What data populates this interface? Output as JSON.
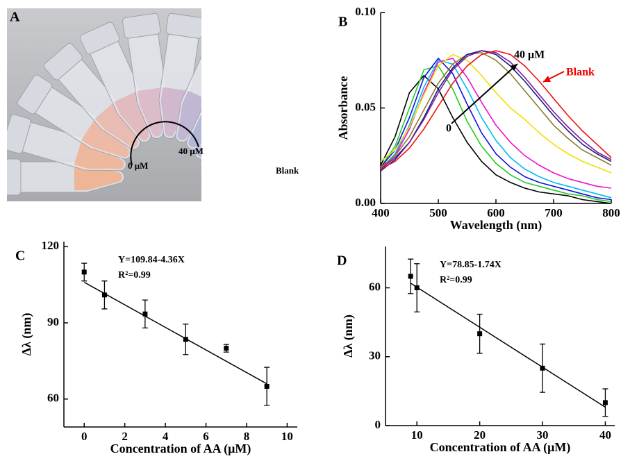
{
  "chart_data": [
    {
      "type": "image",
      "label": "A",
      "annotations": [
        "0 μM",
        "40 μM",
        "Blank"
      ]
    },
    {
      "type": "line",
      "label": "B",
      "xlabel": "Wavelength (nm)",
      "ylabel": "Absorbance",
      "annotations": [
        "40 μM",
        "Blank",
        "0"
      ],
      "x": [
        400,
        425,
        450,
        475,
        500,
        525,
        550,
        575,
        600,
        625,
        650,
        675,
        700,
        725,
        750,
        775,
        800
      ],
      "xlim": [
        400,
        800
      ],
      "xticks": [
        400,
        500,
        600,
        700,
        800
      ],
      "ylim": [
        0,
        0.1
      ],
      "yticks": [
        {
          "value": 0,
          "label": "0.00"
        },
        {
          "value": 0.05,
          "label": "0.05"
        },
        {
          "value": 0.1,
          "label": "0.10"
        }
      ],
      "series": [
        {
          "color": "#000000",
          "values": [
            0.02,
            0.035,
            0.058,
            0.067,
            0.06,
            0.045,
            0.032,
            0.022,
            0.015,
            0.011,
            0.008,
            0.006,
            0.005,
            0.004,
            0.002,
            0.001,
            0.0
          ]
        },
        {
          "color": "#22cc22",
          "values": [
            0.019,
            0.03,
            0.05,
            0.07,
            0.072,
            0.06,
            0.043,
            0.03,
            0.021,
            0.015,
            0.011,
            0.009,
            0.007,
            0.005,
            0.004,
            0.002,
            0.001
          ]
        },
        {
          "color": "#1010dd",
          "values": [
            0.019,
            0.028,
            0.045,
            0.066,
            0.076,
            0.068,
            0.052,
            0.037,
            0.026,
            0.019,
            0.014,
            0.011,
            0.009,
            0.007,
            0.005,
            0.003,
            0.002
          ]
        },
        {
          "color": "#00bbee",
          "values": [
            0.018,
            0.026,
            0.041,
            0.061,
            0.075,
            0.073,
            0.06,
            0.045,
            0.033,
            0.024,
            0.018,
            0.014,
            0.011,
            0.009,
            0.007,
            0.005,
            0.003
          ]
        },
        {
          "color": "#ee11cc",
          "values": [
            0.018,
            0.025,
            0.039,
            0.058,
            0.074,
            0.076,
            0.066,
            0.053,
            0.041,
            0.032,
            0.025,
            0.02,
            0.016,
            0.013,
            0.011,
            0.009,
            0.008
          ]
        },
        {
          "color": "#f0e000",
          "values": [
            0.022,
            0.028,
            0.04,
            0.057,
            0.072,
            0.078,
            0.075,
            0.067,
            0.058,
            0.05,
            0.044,
            0.037,
            0.031,
            0.026,
            0.022,
            0.019,
            0.016
          ]
        },
        {
          "color": "#8b7d2a",
          "values": [
            0.019,
            0.025,
            0.035,
            0.049,
            0.063,
            0.073,
            0.078,
            0.079,
            0.075,
            0.068,
            0.059,
            0.05,
            0.041,
            0.034,
            0.028,
            0.024,
            0.02
          ]
        },
        {
          "color": "#1a1a80",
          "values": [
            0.017,
            0.023,
            0.032,
            0.045,
            0.06,
            0.071,
            0.078,
            0.08,
            0.078,
            0.072,
            0.064,
            0.055,
            0.046,
            0.038,
            0.031,
            0.026,
            0.022
          ]
        },
        {
          "color": "#7a1aa0",
          "values": [
            0.018,
            0.024,
            0.032,
            0.044,
            0.058,
            0.07,
            0.077,
            0.08,
            0.079,
            0.074,
            0.066,
            0.057,
            0.048,
            0.04,
            0.033,
            0.027,
            0.023
          ]
        },
        {
          "color": "#ee1111",
          "values": [
            0.018,
            0.022,
            0.029,
            0.039,
            0.051,
            0.063,
            0.072,
            0.078,
            0.08,
            0.078,
            0.072,
            0.064,
            0.055,
            0.046,
            0.038,
            0.031,
            0.024
          ]
        }
      ]
    },
    {
      "type": "errorbar",
      "label": "C",
      "xlabel": "Concentration of AA (μM)",
      "ylabel": "Δλ (nm)",
      "equation": "Y=109.84-4.36X",
      "r2": "R²=0.99",
      "x": [
        0,
        1,
        3,
        5,
        7,
        9
      ],
      "values": [
        110,
        101,
        93.5,
        83.5,
        80,
        65
      ],
      "errors": [
        3.5,
        5.5,
        5.5,
        6,
        1.5,
        7.5
      ],
      "fit_x": [
        0,
        9
      ],
      "fit_y": [
        106,
        66
      ],
      "xlim": [
        -1,
        10.5
      ],
      "xticks": [
        0,
        2,
        4,
        6,
        8,
        10
      ],
      "ylim": [
        49,
        122
      ],
      "yticks": [
        60,
        90,
        120
      ]
    },
    {
      "type": "errorbar",
      "label": "D",
      "xlabel": "Concentration of AA (μM)",
      "ylabel": "Δλ (nm)",
      "equation": "Y=78.85-1.74X",
      "r2": "R²=0.99",
      "x": [
        9,
        10,
        20,
        30,
        40
      ],
      "values": [
        65,
        60,
        40,
        25,
        10
      ],
      "errors": [
        7.5,
        10.5,
        8.5,
        10.5,
        6
      ],
      "fit_x": [
        9,
        40
      ],
      "fit_y": [
        62,
        8
      ],
      "xlim": [
        5,
        41.5
      ],
      "xticks": [
        10,
        20,
        30,
        40
      ],
      "ylim": [
        0,
        78
      ],
      "yticks": [
        0,
        30,
        60
      ]
    }
  ]
}
